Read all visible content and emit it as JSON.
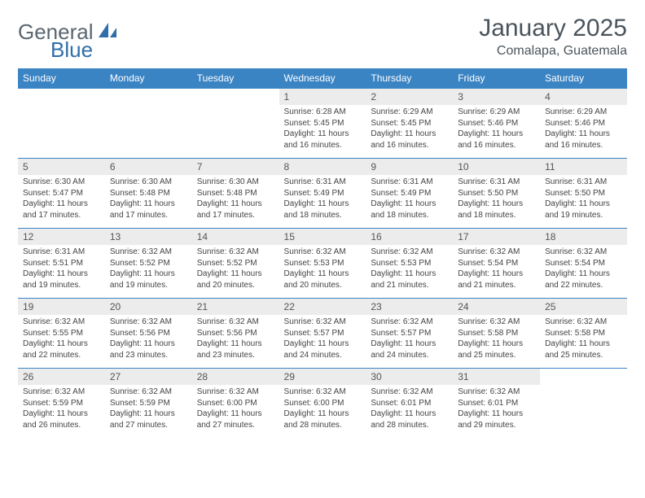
{
  "logo": {
    "word1": "General",
    "word2": "Blue",
    "color_gray": "#5a6670",
    "color_blue": "#2f6ea8"
  },
  "title": "January 2025",
  "location": "Comalapa, Guatemala",
  "colors": {
    "header_bg": "#3b84c4",
    "header_text": "#ffffff",
    "daynum_bg": "#ececec",
    "border": "#3b84c4",
    "body_text": "#444444"
  },
  "weekdays": [
    "Sunday",
    "Monday",
    "Tuesday",
    "Wednesday",
    "Thursday",
    "Friday",
    "Saturday"
  ],
  "first_weekday_index": 3,
  "days": [
    {
      "n": 1,
      "sunrise": "6:28 AM",
      "sunset": "5:45 PM",
      "daylight": "11 hours and 16 minutes."
    },
    {
      "n": 2,
      "sunrise": "6:29 AM",
      "sunset": "5:45 PM",
      "daylight": "11 hours and 16 minutes."
    },
    {
      "n": 3,
      "sunrise": "6:29 AM",
      "sunset": "5:46 PM",
      "daylight": "11 hours and 16 minutes."
    },
    {
      "n": 4,
      "sunrise": "6:29 AM",
      "sunset": "5:46 PM",
      "daylight": "11 hours and 16 minutes."
    },
    {
      "n": 5,
      "sunrise": "6:30 AM",
      "sunset": "5:47 PM",
      "daylight": "11 hours and 17 minutes."
    },
    {
      "n": 6,
      "sunrise": "6:30 AM",
      "sunset": "5:48 PM",
      "daylight": "11 hours and 17 minutes."
    },
    {
      "n": 7,
      "sunrise": "6:30 AM",
      "sunset": "5:48 PM",
      "daylight": "11 hours and 17 minutes."
    },
    {
      "n": 8,
      "sunrise": "6:31 AM",
      "sunset": "5:49 PM",
      "daylight": "11 hours and 18 minutes."
    },
    {
      "n": 9,
      "sunrise": "6:31 AM",
      "sunset": "5:49 PM",
      "daylight": "11 hours and 18 minutes."
    },
    {
      "n": 10,
      "sunrise": "6:31 AM",
      "sunset": "5:50 PM",
      "daylight": "11 hours and 18 minutes."
    },
    {
      "n": 11,
      "sunrise": "6:31 AM",
      "sunset": "5:50 PM",
      "daylight": "11 hours and 19 minutes."
    },
    {
      "n": 12,
      "sunrise": "6:31 AM",
      "sunset": "5:51 PM",
      "daylight": "11 hours and 19 minutes."
    },
    {
      "n": 13,
      "sunrise": "6:32 AM",
      "sunset": "5:52 PM",
      "daylight": "11 hours and 19 minutes."
    },
    {
      "n": 14,
      "sunrise": "6:32 AM",
      "sunset": "5:52 PM",
      "daylight": "11 hours and 20 minutes."
    },
    {
      "n": 15,
      "sunrise": "6:32 AM",
      "sunset": "5:53 PM",
      "daylight": "11 hours and 20 minutes."
    },
    {
      "n": 16,
      "sunrise": "6:32 AM",
      "sunset": "5:53 PM",
      "daylight": "11 hours and 21 minutes."
    },
    {
      "n": 17,
      "sunrise": "6:32 AM",
      "sunset": "5:54 PM",
      "daylight": "11 hours and 21 minutes."
    },
    {
      "n": 18,
      "sunrise": "6:32 AM",
      "sunset": "5:54 PM",
      "daylight": "11 hours and 22 minutes."
    },
    {
      "n": 19,
      "sunrise": "6:32 AM",
      "sunset": "5:55 PM",
      "daylight": "11 hours and 22 minutes."
    },
    {
      "n": 20,
      "sunrise": "6:32 AM",
      "sunset": "5:56 PM",
      "daylight": "11 hours and 23 minutes."
    },
    {
      "n": 21,
      "sunrise": "6:32 AM",
      "sunset": "5:56 PM",
      "daylight": "11 hours and 23 minutes."
    },
    {
      "n": 22,
      "sunrise": "6:32 AM",
      "sunset": "5:57 PM",
      "daylight": "11 hours and 24 minutes."
    },
    {
      "n": 23,
      "sunrise": "6:32 AM",
      "sunset": "5:57 PM",
      "daylight": "11 hours and 24 minutes."
    },
    {
      "n": 24,
      "sunrise": "6:32 AM",
      "sunset": "5:58 PM",
      "daylight": "11 hours and 25 minutes."
    },
    {
      "n": 25,
      "sunrise": "6:32 AM",
      "sunset": "5:58 PM",
      "daylight": "11 hours and 25 minutes."
    },
    {
      "n": 26,
      "sunrise": "6:32 AM",
      "sunset": "5:59 PM",
      "daylight": "11 hours and 26 minutes."
    },
    {
      "n": 27,
      "sunrise": "6:32 AM",
      "sunset": "5:59 PM",
      "daylight": "11 hours and 27 minutes."
    },
    {
      "n": 28,
      "sunrise": "6:32 AM",
      "sunset": "6:00 PM",
      "daylight": "11 hours and 27 minutes."
    },
    {
      "n": 29,
      "sunrise": "6:32 AM",
      "sunset": "6:00 PM",
      "daylight": "11 hours and 28 minutes."
    },
    {
      "n": 30,
      "sunrise": "6:32 AM",
      "sunset": "6:01 PM",
      "daylight": "11 hours and 28 minutes."
    },
    {
      "n": 31,
      "sunrise": "6:32 AM",
      "sunset": "6:01 PM",
      "daylight": "11 hours and 29 minutes."
    }
  ],
  "labels": {
    "sunrise": "Sunrise:",
    "sunset": "Sunset:",
    "daylight": "Daylight:"
  }
}
